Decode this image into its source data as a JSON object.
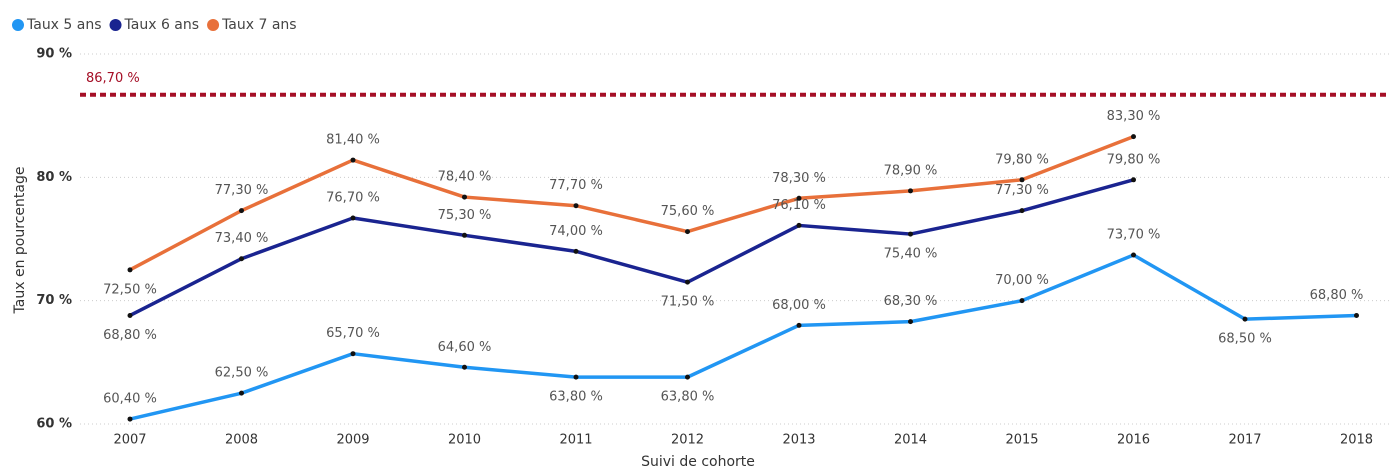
{
  "chart_data": {
    "type": "line",
    "x_label": "Suivi de cohorte",
    "y_label": "Taux en pourcentage",
    "categories": [
      "2007",
      "2008",
      "2009",
      "2010",
      "2011",
      "2012",
      "2013",
      "2014",
      "2015",
      "2016",
      "2017",
      "2018"
    ],
    "series": [
      {
        "name": "Taux 5 ans",
        "color": "#2196f3",
        "values": [
          60.4,
          62.5,
          65.7,
          64.6,
          63.8,
          63.8,
          68.0,
          68.3,
          70.0,
          73.7,
          68.5,
          68.8
        ],
        "value_labels": [
          "60,40 %",
          "62,50 %",
          "65,70 %",
          "64,60 %",
          "63,80 %",
          "63,80 %",
          "68,00 %",
          "68,30 %",
          "70,00 %",
          "73,70 %",
          "68,50 %",
          "68,80 %"
        ]
      },
      {
        "name": "Taux 6 ans",
        "color": "#1a2490",
        "values": [
          68.8,
          73.4,
          76.7,
          75.3,
          74.0,
          71.5,
          76.1,
          75.4,
          77.3,
          79.8,
          null,
          null
        ],
        "value_labels": [
          "68,80 %",
          "73,40 %",
          "76,70 %",
          "75,30 %",
          "74,00 %",
          "71,50 %",
          "76,10 %",
          "75,40 %",
          "77,30 %",
          "79,80 %",
          null,
          null
        ]
      },
      {
        "name": "Taux 7 ans",
        "color": "#e8703a",
        "values": [
          72.5,
          77.3,
          81.4,
          78.4,
          77.7,
          75.6,
          78.3,
          78.9,
          79.8,
          83.3,
          null,
          null
        ],
        "value_labels": [
          "72,50 %",
          "77,30 %",
          "81,40 %",
          "78,40 %",
          "77,70 %",
          "75,60 %",
          "78,30 %",
          "78,90 %",
          "79,80 %",
          "83,30 %",
          null,
          null
        ]
      }
    ],
    "ylim": [
      60,
      90
    ],
    "yticks": [
      {
        "value": 60,
        "label": "60 %"
      },
      {
        "value": 70,
        "label": "70 %"
      },
      {
        "value": 80,
        "label": "80 %"
      },
      {
        "value": 90,
        "label": "90 %"
      }
    ],
    "grid": true,
    "reference_line": {
      "value": 86.7,
      "label": "86,70 %",
      "color": "#a50f26"
    },
    "legend": "top-left"
  }
}
